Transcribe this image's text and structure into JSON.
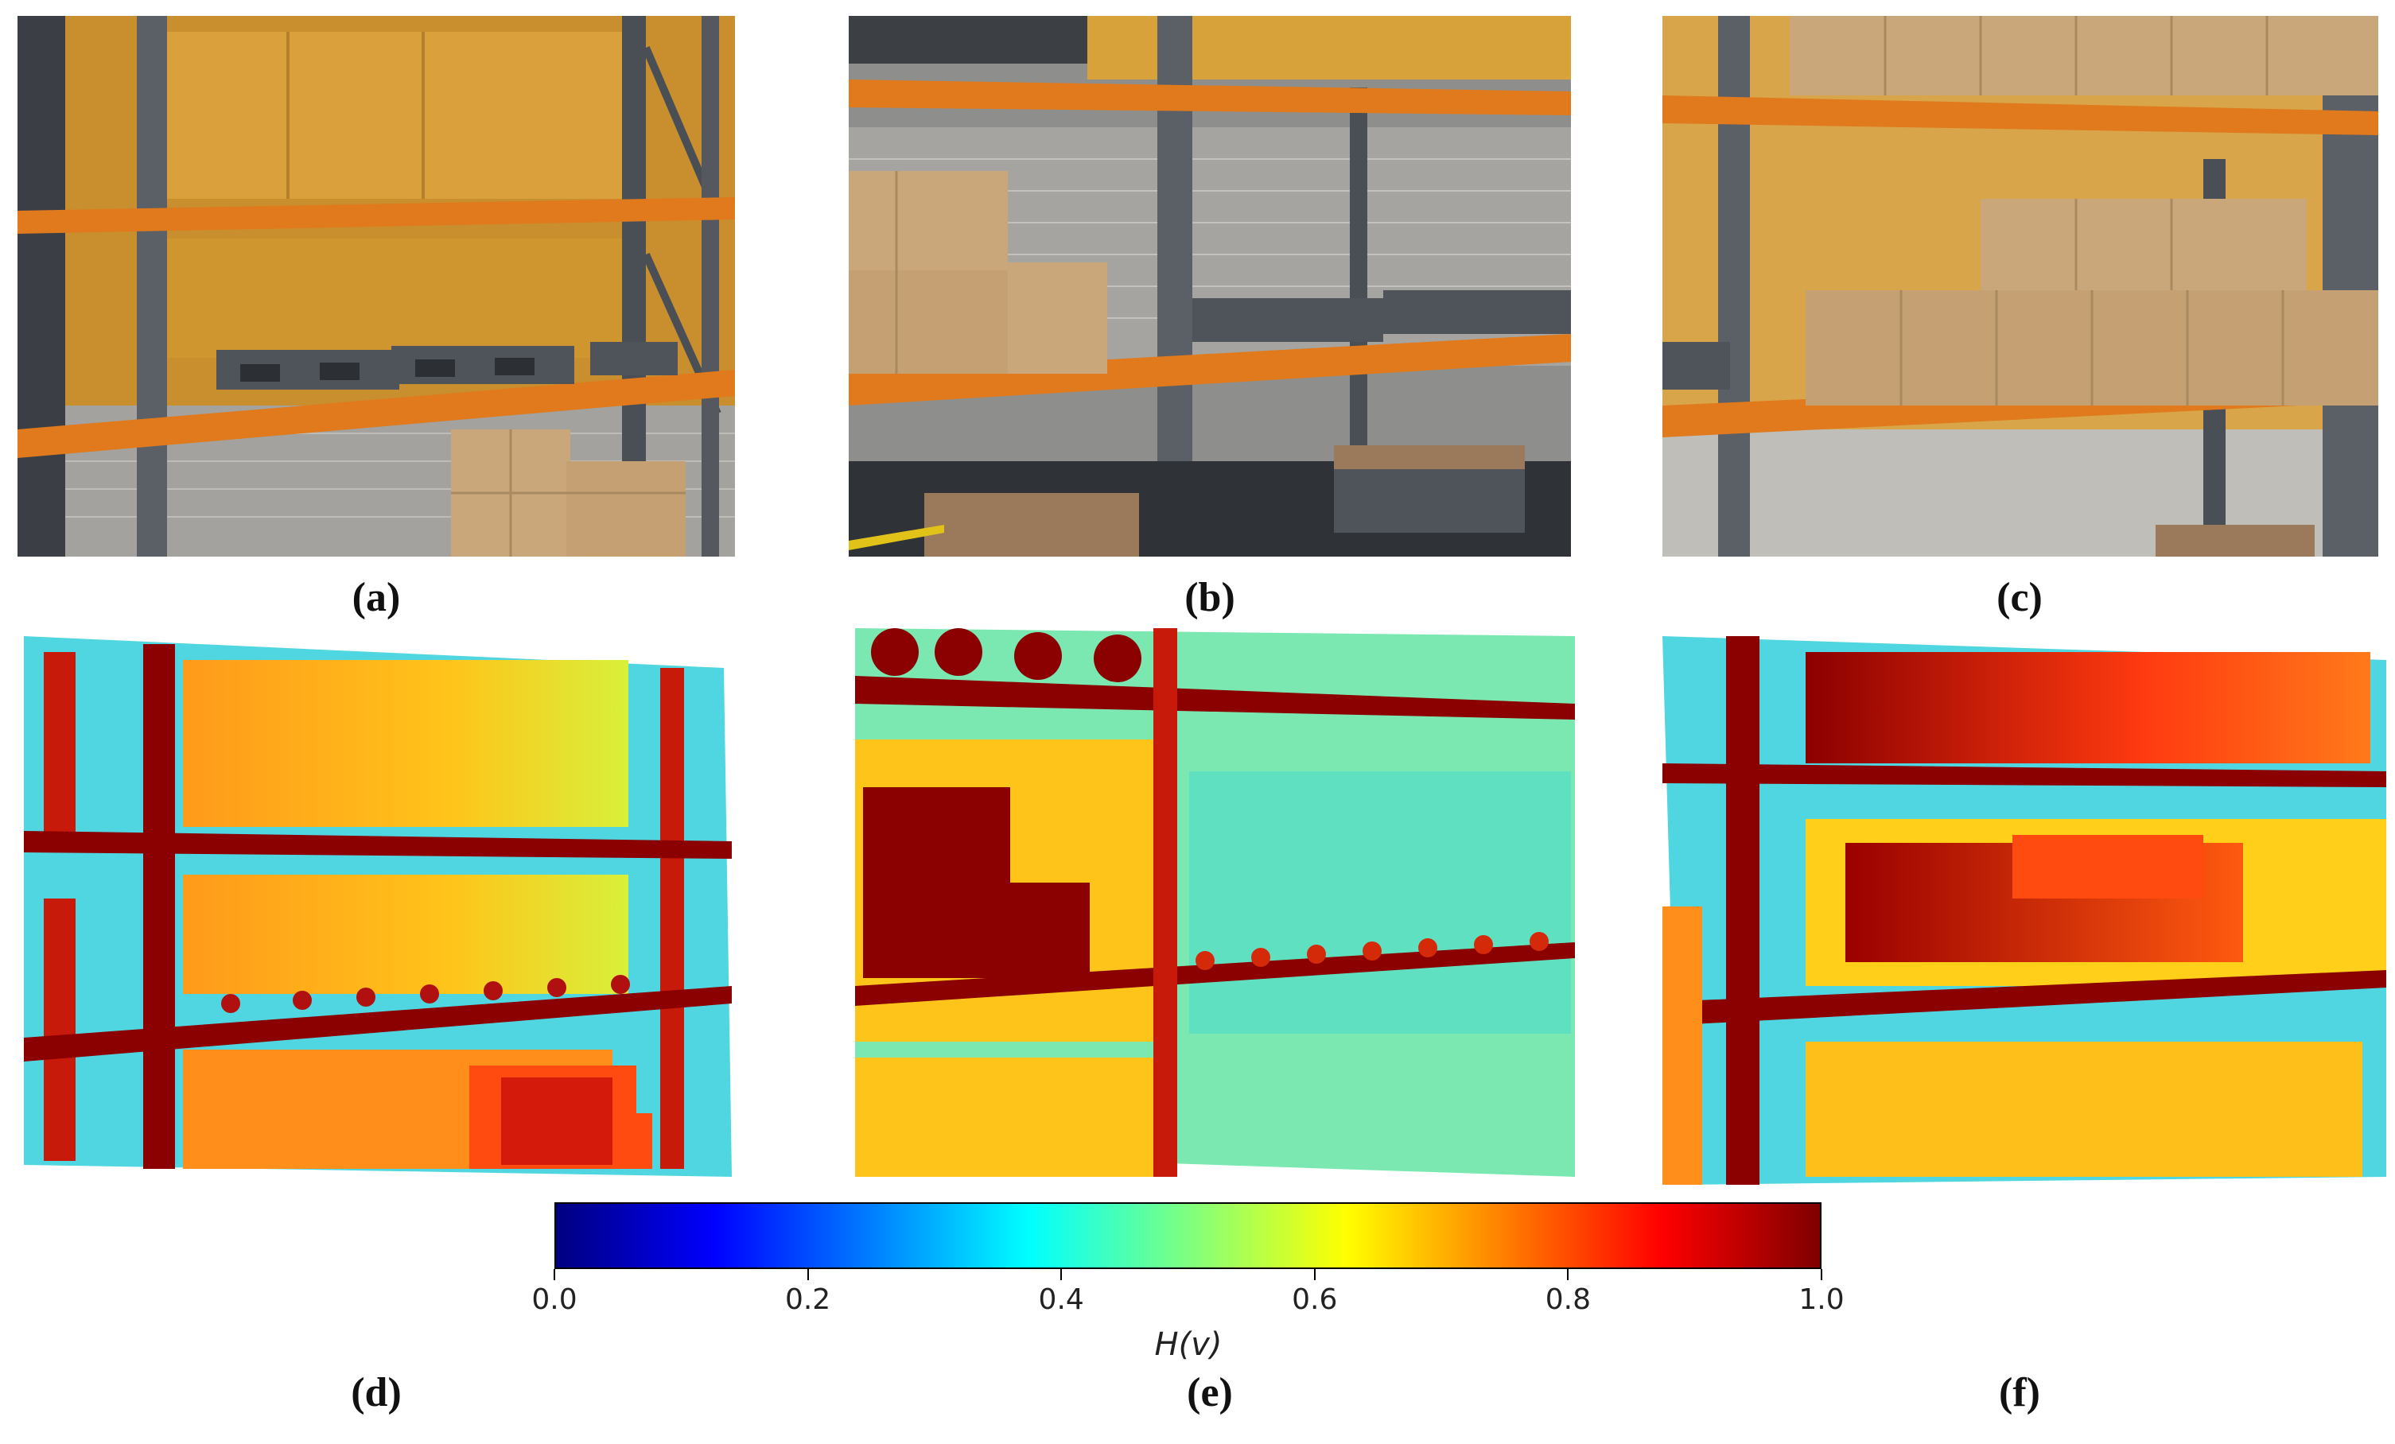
{
  "figure": {
    "panels": [
      {
        "id": "a",
        "label": "(a)",
        "kind": "photo",
        "scene": "warehouse-shelf-left"
      },
      {
        "id": "b",
        "label": "(b)",
        "kind": "photo",
        "scene": "warehouse-shelf-center"
      },
      {
        "id": "c",
        "label": "(c)",
        "kind": "photo",
        "scene": "warehouse-shelf-right"
      },
      {
        "id": "d",
        "label": "(d)",
        "kind": "heatmap"
      },
      {
        "id": "e",
        "label": "(e)",
        "kind": "heatmap"
      },
      {
        "id": "f",
        "label": "(f)",
        "kind": "heatmap"
      }
    ],
    "colorbar": {
      "label": "H(v)",
      "ticks": [
        "0.0",
        "0.2",
        "0.4",
        "0.6",
        "0.8",
        "1.0"
      ],
      "tick_values": [
        0.0,
        0.2,
        0.4,
        0.6,
        0.8,
        1.0
      ],
      "range": [
        0.0,
        1.0
      ],
      "colormap": "jet",
      "colors": [
        "#00007f",
        "#0000ff",
        "#007fff",
        "#00ffff",
        "#7fff7f",
        "#ffff00",
        "#ff7f00",
        "#ff0000",
        "#7f0000"
      ]
    },
    "palette": {
      "shelf_orange": "#e07a1c",
      "upright_grey": "#5b5f66",
      "box_tan": "#c9a77a",
      "wall_yellow": "#d8a23a",
      "brick_grey": "#9c9c9a",
      "pallet_grey": "#4f535a",
      "pallet_wood": "#9a7a5a",
      "heat_red": "#8b0000",
      "heat_orange": "#ff8c1a",
      "heat_yellow": "#ffd21a",
      "heat_cyan": "#40e0d0"
    }
  }
}
